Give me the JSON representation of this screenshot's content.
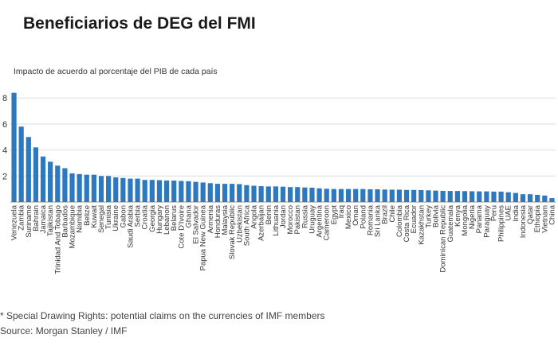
{
  "header": {
    "title": "Beneficiarios de DEG del FMI",
    "subtitle": "Impacto de acuerdo al porcentaje del PIB de cada país"
  },
  "footer": {
    "note": "* Special Drawing Rights: potential claims on the currencies of IMF members",
    "source": "Source: Morgan Stanley / IMF"
  },
  "colors": {
    "bar": "#2d79bf",
    "grid": "#dddddd",
    "text": "#333333"
  },
  "chart_data": {
    "type": "bar",
    "title": "Beneficiarios de DEG del FMI",
    "subtitle": "Impacto de acuerdo al porcentaje del PIB de cada país",
    "xlabel": "",
    "ylabel": "",
    "ylim": [
      0,
      8.5
    ],
    "yticks": [
      2,
      4,
      6,
      8
    ],
    "ytick_labels": [
      "2",
      "4",
      "6",
      "8"
    ],
    "grid": true,
    "categories": [
      "Venezuela",
      "Zambia",
      "Suriname",
      "Bahrain",
      "Jamaica",
      "Tajikistan",
      "Trinidad And Tobago",
      "Barbados",
      "Mozambique",
      "Namibia",
      "Belize",
      "Kuwait",
      "Senegal",
      "Tunisia",
      "Ukraine",
      "Gabon",
      "Saudi Arabia",
      "Serbia",
      "Croatia",
      "Georgia",
      "Hungary",
      "Lebanon",
      "Belarus",
      "Cote D'Ivoire",
      "Ghana",
      "El Salvador",
      "Papua New Guinea",
      "Armenia",
      "Honduras",
      "Malaysia",
      "Slovak Republic",
      "Uzbekistan",
      "South Africa",
      "Angola",
      "Azerbaijan",
      "Benin",
      "Lithuania",
      "Jordan",
      "Morocco",
      "Pakistan",
      "Russia",
      "Uruguay",
      "Argentina",
      "Cameroon",
      "Egypt",
      "Iraq",
      "Mexico",
      "Oman",
      "Poland",
      "Romania",
      "Sri Lanka",
      "Brazil",
      "Chile",
      "Colombia",
      "Costa Rica",
      "Ecuador",
      "Kazakhstan",
      "Turkey",
      "Bolivia",
      "Dominican Republic",
      "Guatemala",
      "Kenya",
      "Mongolia",
      "Nigeria",
      "Panama",
      "Paraguay",
      "Peru",
      "Philippines",
      "UAE",
      "India",
      "Indonesia",
      "Qatar",
      "Ethiopia",
      "Vietnam",
      "China"
    ],
    "values": [
      8.4,
      5.8,
      5.0,
      4.2,
      3.5,
      3.1,
      2.8,
      2.6,
      2.2,
      2.15,
      2.1,
      2.1,
      2.0,
      2.0,
      1.9,
      1.85,
      1.8,
      1.8,
      1.7,
      1.7,
      1.68,
      1.65,
      1.65,
      1.62,
      1.6,
      1.55,
      1.5,
      1.45,
      1.4,
      1.4,
      1.4,
      1.38,
      1.3,
      1.25,
      1.22,
      1.2,
      1.2,
      1.18,
      1.15,
      1.15,
      1.12,
      1.1,
      1.05,
      1.02,
      1.0,
      1.0,
      1.0,
      1.0,
      1.0,
      0.98,
      0.98,
      0.96,
      0.95,
      0.95,
      0.93,
      0.93,
      0.92,
      0.9,
      0.88,
      0.86,
      0.85,
      0.85,
      0.84,
      0.83,
      0.82,
      0.82,
      0.8,
      0.8,
      0.75,
      0.7,
      0.6,
      0.6,
      0.55,
      0.5,
      0.3
    ]
  }
}
